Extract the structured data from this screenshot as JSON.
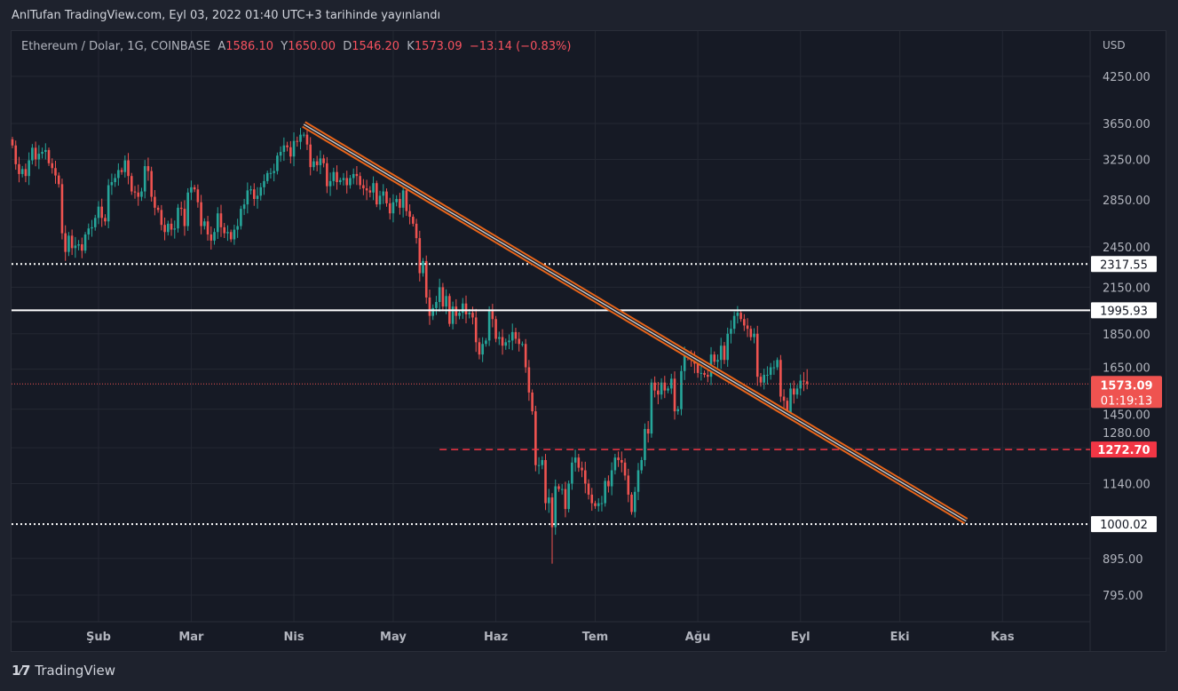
{
  "header": {
    "published": "AnlTufan TradingView.com, Eyl 03, 2022 01:40 UTC+3 tarihinde yayınlandı"
  },
  "legend": {
    "symbol": "Ethereum / Dolar, 1G, COINBASE",
    "open_label": "A",
    "open": "1586.10",
    "high_label": "Y",
    "high": "1650.00",
    "low_label": "D",
    "low": "1546.20",
    "close_label": "K",
    "close": "1573.09",
    "change": "−13.14 (−0.83%)"
  },
  "footer": {
    "brand": "TradingView",
    "logo": "TV"
  },
  "colors": {
    "up": "#26a69a",
    "down": "#ef5350",
    "trendline": "#e8651a",
    "level_red": "#f23645",
    "background": "#161a25"
  },
  "chart_data": {
    "type": "candlestick",
    "currency": "USD",
    "y_scale": "log",
    "grid": true,
    "y_ticks": [
      "4250.00",
      "3650.00",
      "3250.00",
      "2850.00",
      "2450.00",
      "2150.00",
      "1850.00",
      "1650.00",
      "1450.00",
      "1280.00",
      "1140.00",
      "895.00",
      "795.00"
    ],
    "x_ticks": [
      {
        "label": "Şub",
        "date": "2022-02-01"
      },
      {
        "label": "Mar",
        "date": "2022-03-01"
      },
      {
        "label": "Nis",
        "date": "2022-04-01"
      },
      {
        "label": "May",
        "date": "2022-05-01"
      },
      {
        "label": "Haz",
        "date": "2022-06-01"
      },
      {
        "label": "Tem",
        "date": "2022-07-01"
      },
      {
        "label": "Ağu",
        "date": "2022-08-01"
      },
      {
        "label": "Eyl",
        "date": "2022-09-01"
      },
      {
        "label": "Eki",
        "date": "2022-10-01"
      },
      {
        "label": "Kas",
        "date": "2022-11-01"
      }
    ],
    "last_candle": {
      "open": 1586.1,
      "high": 1650.0,
      "low": 1546.2,
      "close": 1573.09
    },
    "current_price_label": "1573.09",
    "countdown": "01:19:13",
    "horizontal_levels": [
      {
        "price": 2317.55,
        "label": "2317.55",
        "style": "dotted",
        "color": "#ffffff"
      },
      {
        "price": 1995.93,
        "label": "1995.93",
        "style": "solid",
        "color": "#ffffff"
      },
      {
        "price": 1272.7,
        "label": "1272.70",
        "style": "dashed",
        "color": "#f23645",
        "from": "2022-05-15"
      },
      {
        "price": 1000.02,
        "label": "1000.02",
        "style": "dotted",
        "color": "#ffffff"
      }
    ],
    "trendline": {
      "start": {
        "date": "2022-04-04",
        "price": 3640
      },
      "end": {
        "date": "2022-10-21",
        "price": 1010
      }
    },
    "closes": {
      "2022-01-06": 3400,
      "2022-01-07": 3200,
      "2022-01-08": 3100,
      "2022-01-09": 3150,
      "2022-01-10": 3080,
      "2022-01-11": 3240,
      "2022-01-12": 3375,
      "2022-01-13": 3250,
      "2022-01-14": 3310,
      "2022-01-15": 3330,
      "2022-01-16": 3350,
      "2022-01-17": 3210,
      "2022-01-18": 3160,
      "2022-01-19": 3085,
      "2022-01-20": 3000,
      "2022-01-21": 2560,
      "2022-01-22": 2410,
      "2022-01-23": 2540,
      "2022-01-24": 2440,
      "2022-01-25": 2460,
      "2022-01-26": 2470,
      "2022-01-27": 2420,
      "2022-01-28": 2550,
      "2022-01-29": 2600,
      "2022-01-30": 2610,
      "2022-01-31": 2690,
      "2022-02-01": 2790,
      "2022-02-02": 2690,
      "2022-02-03": 2660,
      "2022-02-04": 2990,
      "2022-02-05": 3020,
      "2022-02-06": 3060,
      "2022-02-07": 3140,
      "2022-02-08": 3120,
      "2022-02-09": 3240,
      "2022-02-10": 3080,
      "2022-02-11": 2930,
      "2022-02-12": 2920,
      "2022-02-13": 2880,
      "2022-02-14": 2930,
      "2022-02-15": 3180,
      "2022-02-16": 3130,
      "2022-02-17": 2880,
      "2022-02-18": 2780,
      "2022-02-19": 2760,
      "2022-02-20": 2630,
      "2022-02-21": 2570,
      "2022-02-22": 2640,
      "2022-02-23": 2590,
      "2022-02-24": 2600,
      "2022-02-25": 2780,
      "2022-02-26": 2770,
      "2022-02-27": 2620,
      "2022-02-28": 2920,
      "2022-03-01": 2970,
      "2022-03-02": 2950,
      "2022-03-03": 2830,
      "2022-03-04": 2620,
      "2022-03-05": 2660,
      "2022-03-06": 2550,
      "2022-03-07": 2500,
      "2022-03-08": 2570,
      "2022-03-09": 2730,
      "2022-03-10": 2610,
      "2022-03-11": 2560,
      "2022-03-12": 2570,
      "2022-03-13": 2510,
      "2022-03-14": 2590,
      "2022-03-15": 2620,
      "2022-03-16": 2770,
      "2022-03-17": 2810,
      "2022-03-18": 2940,
      "2022-03-19": 2950,
      "2022-03-20": 2860,
      "2022-03-21": 2890,
      "2022-03-22": 2970,
      "2022-03-23": 3030,
      "2022-03-24": 3110,
      "2022-03-25": 3110,
      "2022-03-26": 3130,
      "2022-03-27": 3290,
      "2022-03-28": 3330,
      "2022-03-29": 3400,
      "2022-03-30": 3380,
      "2022-03-31": 3280,
      "2022-04-01": 3450,
      "2022-04-02": 3440,
      "2022-04-03": 3520,
      "2022-04-04": 3520,
      "2022-04-05": 3410,
      "2022-04-06": 3170,
      "2022-04-07": 3230,
      "2022-04-08": 3190,
      "2022-04-09": 3260,
      "2022-04-10": 3210,
      "2022-04-11": 2980,
      "2022-04-12": 3030,
      "2022-04-13": 3120,
      "2022-04-14": 3020,
      "2022-04-15": 3040,
      "2022-04-16": 3060,
      "2022-04-17": 2990,
      "2022-04-18": 3060,
      "2022-04-19": 3100,
      "2022-04-20": 3080,
      "2022-04-21": 2990,
      "2022-04-22": 2960,
      "2022-04-23": 2940,
      "2022-04-24": 2920,
      "2022-04-25": 3010,
      "2022-04-26": 2810,
      "2022-04-27": 2890,
      "2022-04-28": 2930,
      "2022-04-29": 2820,
      "2022-04-30": 2730,
      "2022-05-01": 2830,
      "2022-05-02": 2860,
      "2022-05-03": 2780,
      "2022-05-04": 2940,
      "2022-05-05": 2750,
      "2022-05-06": 2700,
      "2022-05-07": 2640,
      "2022-05-08": 2520,
      "2022-05-09": 2250,
      "2022-05-10": 2340,
      "2022-05-11": 2080,
      "2022-05-12": 1960,
      "2022-05-13": 2010,
      "2022-05-14": 2050,
      "2022-05-15": 2150,
      "2022-05-16": 2020,
      "2022-05-17": 2090,
      "2022-05-18": 1910,
      "2022-05-19": 2020,
      "2022-05-20": 1960,
      "2022-05-21": 1980,
      "2022-05-22": 2040,
      "2022-05-23": 1970,
      "2022-05-24": 1980,
      "2022-05-25": 1950,
      "2022-05-26": 1800,
      "2022-05-27": 1730,
      "2022-05-28": 1790,
      "2022-05-29": 1810,
      "2022-05-30": 1990,
      "2022-05-31": 1940,
      "2022-06-01": 1820,
      "2022-06-02": 1830,
      "2022-06-03": 1780,
      "2022-06-04": 1800,
      "2022-06-05": 1810,
      "2022-06-06": 1860,
      "2022-06-07": 1820,
      "2022-06-08": 1790,
      "2022-06-09": 1790,
      "2022-06-10": 1660,
      "2022-06-11": 1530,
      "2022-06-12": 1440,
      "2022-06-13": 1210,
      "2022-06-14": 1210,
      "2022-06-15": 1230,
      "2022-06-16": 1070,
      "2022-06-17": 1090,
      "2022-06-18": 990,
      "2022-06-19": 1130,
      "2022-06-20": 1120,
      "2022-06-21": 1120,
      "2022-06-22": 1050,
      "2022-06-23": 1140,
      "2022-06-24": 1220,
      "2022-06-25": 1240,
      "2022-06-26": 1200,
      "2022-06-27": 1190,
      "2022-06-28": 1140,
      "2022-06-29": 1100,
      "2022-06-30": 1070,
      "2022-07-01": 1060,
      "2022-07-02": 1070,
      "2022-07-03": 1070,
      "2022-07-04": 1150,
      "2022-07-05": 1130,
      "2022-07-06": 1190,
      "2022-07-07": 1240,
      "2022-07-08": 1230,
      "2022-07-09": 1220,
      "2022-07-10": 1170,
      "2022-07-11": 1100,
      "2022-07-12": 1040,
      "2022-07-13": 1110,
      "2022-07-14": 1190,
      "2022-07-15": 1230,
      "2022-07-16": 1360,
      "2022-07-17": 1340,
      "2022-07-18": 1580,
      "2022-07-19": 1540,
      "2022-07-20": 1520,
      "2022-07-21": 1580,
      "2022-07-22": 1540,
      "2022-07-23": 1550,
      "2022-07-24": 1600,
      "2022-07-25": 1440,
      "2022-07-26": 1450,
      "2022-07-27": 1640,
      "2022-07-28": 1730,
      "2022-07-29": 1720,
      "2022-07-30": 1700,
      "2022-07-31": 1680,
      "2022-08-01": 1630,
      "2022-08-02": 1630,
      "2022-08-03": 1620,
      "2022-08-04": 1610,
      "2022-08-05": 1730,
      "2022-08-06": 1690,
      "2022-08-07": 1700,
      "2022-08-08": 1780,
      "2022-08-09": 1700,
      "2022-08-10": 1850,
      "2022-08-11": 1880,
      "2022-08-12": 1960,
      "2022-08-13": 1980,
      "2022-08-14": 1940,
      "2022-08-15": 1900,
      "2022-08-16": 1880,
      "2022-08-17": 1830,
      "2022-08-18": 1850,
      "2022-08-19": 1610,
      "2022-08-20": 1580,
      "2022-08-21": 1620,
      "2022-08-22": 1620,
      "2022-08-23": 1660,
      "2022-08-24": 1660,
      "2022-08-25": 1700,
      "2022-08-26": 1510,
      "2022-08-27": 1490,
      "2022-08-28": 1430,
      "2022-08-29": 1550,
      "2022-08-30": 1520,
      "2022-08-31": 1550,
      "2022-09-01": 1590,
      "2022-09-02": 1586.1,
      "2022-09-03": 1573.09
    }
  }
}
